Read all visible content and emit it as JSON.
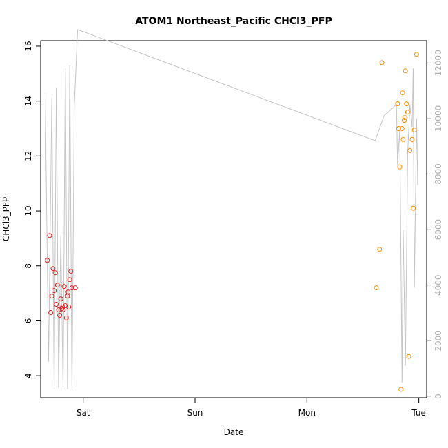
{
  "chart_data": {
    "type": "scatter",
    "title": "ATOM1 Northeast_Pacific CHCl3_PFP",
    "xlabel": "Date",
    "ylabel": "CHCl3_PFP",
    "x_unit": "days after Friday 00:00",
    "xlim": [
      0.62,
      4.07
    ],
    "ylim": [
      3.2,
      16.2
    ],
    "y2lim": [
      -50,
      12800
    ],
    "x_ticks": [
      {
        "value": 1,
        "label": "Sat"
      },
      {
        "value": 2,
        "label": "Sun"
      },
      {
        "value": 3,
        "label": "Mon"
      },
      {
        "value": 4,
        "label": "Tue"
      }
    ],
    "y_ticks": [
      4,
      6,
      8,
      10,
      12,
      14,
      16
    ],
    "y2_ticks": [
      0,
      2000,
      4000,
      6000,
      8000,
      10000,
      12000
    ],
    "grid": false,
    "legend": "none",
    "colors": {
      "series1": "#e01d1d",
      "series2": "#ff8c00",
      "line": "#c4c4c4",
      "axis_right": "#b0b0b0"
    },
    "series": [
      {
        "color": "#e01d1d",
        "x": [
          0.68,
          0.7,
          0.71,
          0.72,
          0.73,
          0.74,
          0.75,
          0.76,
          0.77,
          0.78,
          0.79,
          0.8,
          0.81,
          0.815,
          0.82,
          0.83,
          0.84,
          0.85,
          0.86,
          0.865,
          0.87,
          0.88,
          0.89,
          0.9,
          0.93
        ],
        "y": [
          8.2,
          9.1,
          6.3,
          6.9,
          7.9,
          7.1,
          7.75,
          6.6,
          7.3,
          6.4,
          6.2,
          6.8,
          6.45,
          6.5,
          6.4,
          7.25,
          6.55,
          6.1,
          6.9,
          7.05,
          6.5,
          7.5,
          7.8,
          7.2,
          7.2
        ]
      },
      {
        "color": "#ff8c00",
        "x": [
          3.62,
          3.65,
          3.67,
          3.81,
          3.82,
          3.83,
          3.84,
          3.85,
          3.855,
          3.86,
          3.87,
          3.875,
          3.88,
          3.89,
          3.9,
          3.91,
          3.92,
          3.94,
          3.95,
          3.96,
          3.98
        ],
        "y": [
          7.2,
          8.6,
          15.4,
          13.9,
          13.0,
          11.6,
          3.5,
          13.0,
          14.3,
          12.6,
          13.3,
          13.4,
          15.1,
          13.9,
          13.6,
          4.7,
          12.2,
          12.6,
          10.1,
          12.95,
          15.7
        ]
      }
    ],
    "line_series": {
      "axis": "right",
      "x": [
        0.66,
        0.69,
        0.72,
        0.74,
        0.76,
        0.78,
        0.8,
        0.82,
        0.84,
        0.86,
        0.88,
        0.9,
        0.92,
        0.95,
        3.61,
        3.69,
        3.8,
        3.81,
        3.83,
        3.85,
        3.86,
        3.88,
        3.9,
        3.92,
        3.94,
        3.95,
        3.96,
        3.98,
        3.99
      ],
      "y": [
        10900,
        1250,
        10750,
        250,
        11100,
        300,
        5800,
        250,
        11800,
        250,
        11900,
        200,
        10400,
        13200,
        9200,
        10100,
        10500,
        8300,
        9600,
        500,
        6000,
        1100,
        8700,
        10500,
        9700,
        11800,
        3900,
        10000,
        7600
      ]
    }
  }
}
